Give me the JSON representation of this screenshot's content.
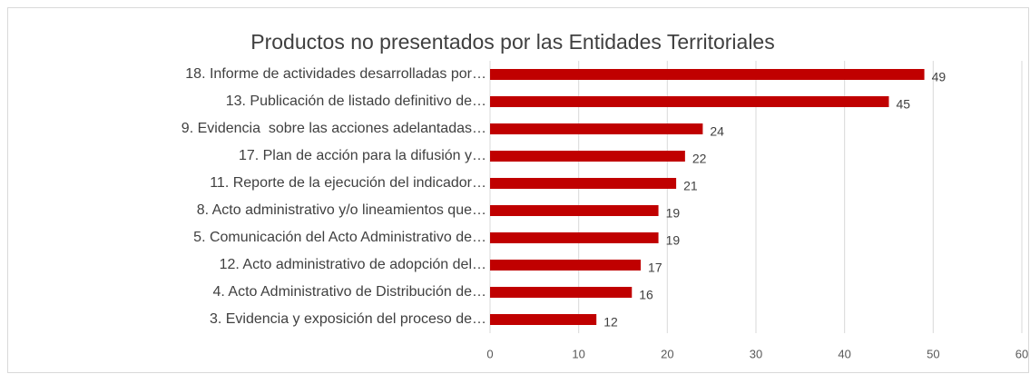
{
  "chart_data": {
    "type": "bar",
    "orientation": "horizontal",
    "title": "Productos no presentados por las Entidades Territoriales",
    "categories": [
      "18. Informe de actividades desarrolladas por…",
      "13. Publicación de listado definitivo de…",
      "9. Evidencia  sobre las acciones adelantadas…",
      "17. Plan de acción para la difusión y…",
      "11. Reporte de la ejecución del indicador…",
      "8. Acto administrativo y/o lineamientos que…",
      "5. Comunicación del Acto Administrativo de…",
      "12. Acto administrativo de adopción del…",
      "4. Acto Administrativo de Distribución de…",
      "3. Evidencia y exposición del proceso de…"
    ],
    "values": [
      49,
      45,
      24,
      22,
      21,
      19,
      19,
      17,
      16,
      12
    ],
    "color": "#c00000",
    "xlim": [
      0,
      60
    ],
    "xticks": [
      0,
      10,
      20,
      30,
      40,
      50,
      60
    ],
    "grid": true
  }
}
